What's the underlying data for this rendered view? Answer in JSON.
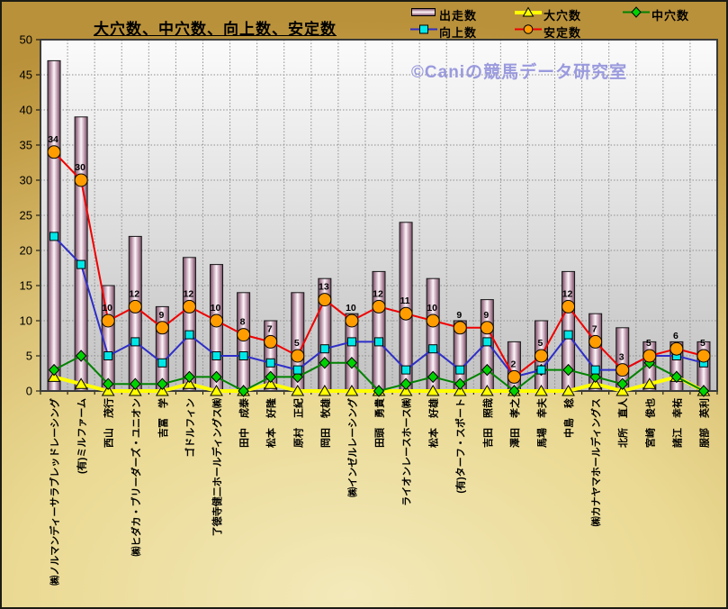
{
  "title": "大穴数、中穴数、向上数、安定数",
  "watermark": "©Caniの競馬データ研究室",
  "y_axis": {
    "min": 0,
    "max": 50,
    "step": 5
  },
  "chart_data": {
    "type": "bar+line combo",
    "title": "大穴数、中穴数、向上数、安定数",
    "ylim": [
      0,
      50
    ],
    "ytick_step": 5,
    "grid": true,
    "legend_position": "top",
    "categories": [
      "㈱ノルマンディーサラブレッドレーシング",
      "(有)ミルファーム",
      "西山　茂行",
      "㈱ヒダカ・ブリーダーズ・ユニオン",
      "吉冨　学",
      "ゴドルフィン",
      "了徳寺健二ホールディングス㈱",
      "田中　成泰",
      "松本　好隆",
      "原村　正紀",
      "岡田　牧雄",
      "㈱インゼルレーシング",
      "田頭　勇貴",
      "ライオンレースホース㈱",
      "松本　好雄",
      "(有)ターフ・スポート",
      "吉田　照哉",
      "澤田　孝之",
      "馬場　幸夫",
      "中島　稔",
      "㈱カナヤマホールディングス",
      "北所　直人",
      "宮崎　俊也",
      "諸江　幸祐",
      "服部　英利"
    ],
    "series": [
      {
        "name": "出走数",
        "type": "bar",
        "color": "#b890a6",
        "values": [
          47,
          39,
          15,
          22,
          12,
          19,
          18,
          14,
          10,
          14,
          16,
          11,
          17,
          24,
          16,
          10,
          13,
          7,
          10,
          17,
          11,
          9,
          7,
          7,
          7
        ]
      },
      {
        "name": "大穴数",
        "type": "line",
        "marker": "triangle",
        "color": "#ffff00",
        "line_width": 4,
        "values": [
          2,
          1,
          0,
          0,
          0,
          1,
          0,
          0,
          1,
          0,
          0,
          0,
          0,
          0,
          0,
          0,
          0,
          0,
          0,
          0,
          1,
          0,
          1,
          2,
          0
        ]
      },
      {
        "name": "中穴数",
        "type": "line",
        "marker": "diamond",
        "color": "#008200",
        "marker_color": "#00d200",
        "line_width": 2,
        "values": [
          3,
          5,
          1,
          1,
          1,
          2,
          2,
          0,
          2,
          2,
          4,
          4,
          0,
          1,
          2,
          1,
          3,
          0,
          3,
          3,
          2,
          1,
          4,
          2,
          0
        ]
      },
      {
        "name": "向上数",
        "type": "line",
        "marker": "square",
        "color": "#2e2ec8",
        "marker_color": "#00e8e8",
        "line_width": 2,
        "values": [
          22,
          18,
          5,
          7,
          4,
          8,
          5,
          5,
          4,
          3,
          6,
          7,
          7,
          3,
          6,
          3,
          7,
          2,
          3,
          8,
          3,
          3,
          5,
          5,
          4
        ]
      },
      {
        "name": "安定数",
        "type": "line",
        "marker": "circle",
        "color": "#f00000",
        "marker_color": "#ff9c00",
        "line_width": 2,
        "data_labels": true,
        "values": [
          34,
          30,
          10,
          12,
          9,
          12,
          10,
          8,
          7,
          5,
          13,
          10,
          12,
          11,
          10,
          9,
          9,
          2,
          5,
          12,
          7,
          3,
          5,
          6,
          5
        ]
      }
    ]
  }
}
